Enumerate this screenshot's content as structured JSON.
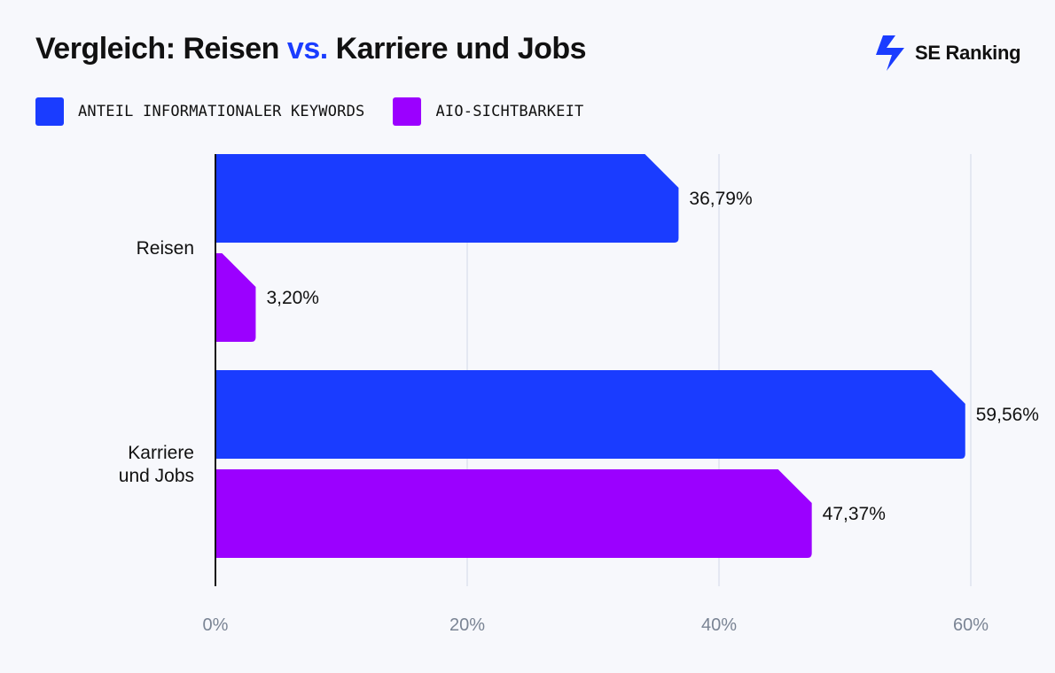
{
  "title": {
    "part1": "Vergleich: Reisen ",
    "accent": "vs.",
    "part2": " Karriere und Jobs"
  },
  "brand": {
    "name": "SE Ranking",
    "logo_icon": "se-ranking-bolt-icon"
  },
  "colors": {
    "series1": "#1a3cff",
    "series2": "#9b00ff",
    "grid": "#dde3ef",
    "axis": "#111111",
    "tick": "#7a8494"
  },
  "chart_data": {
    "type": "bar",
    "orientation": "horizontal",
    "categories": [
      [
        "Reisen"
      ],
      [
        "Karriere",
        "und Jobs"
      ]
    ],
    "series": [
      {
        "name": "ANTEIL INFORMATIONALER KEYWORDS",
        "values": [
          36.79,
          59.56
        ],
        "labels": [
          "36,79%",
          "59,56%"
        ]
      },
      {
        "name": "AIO-SICHTBARKEIT",
        "values": [
          3.2,
          47.37
        ],
        "labels": [
          "3,20%",
          "47,37%"
        ]
      }
    ],
    "xlim": [
      0,
      60
    ],
    "xticks": [
      0,
      20,
      40,
      60
    ],
    "xtick_labels": [
      "0%",
      "20%",
      "40%",
      "60%"
    ],
    "grid": true,
    "legend": "top-left"
  }
}
